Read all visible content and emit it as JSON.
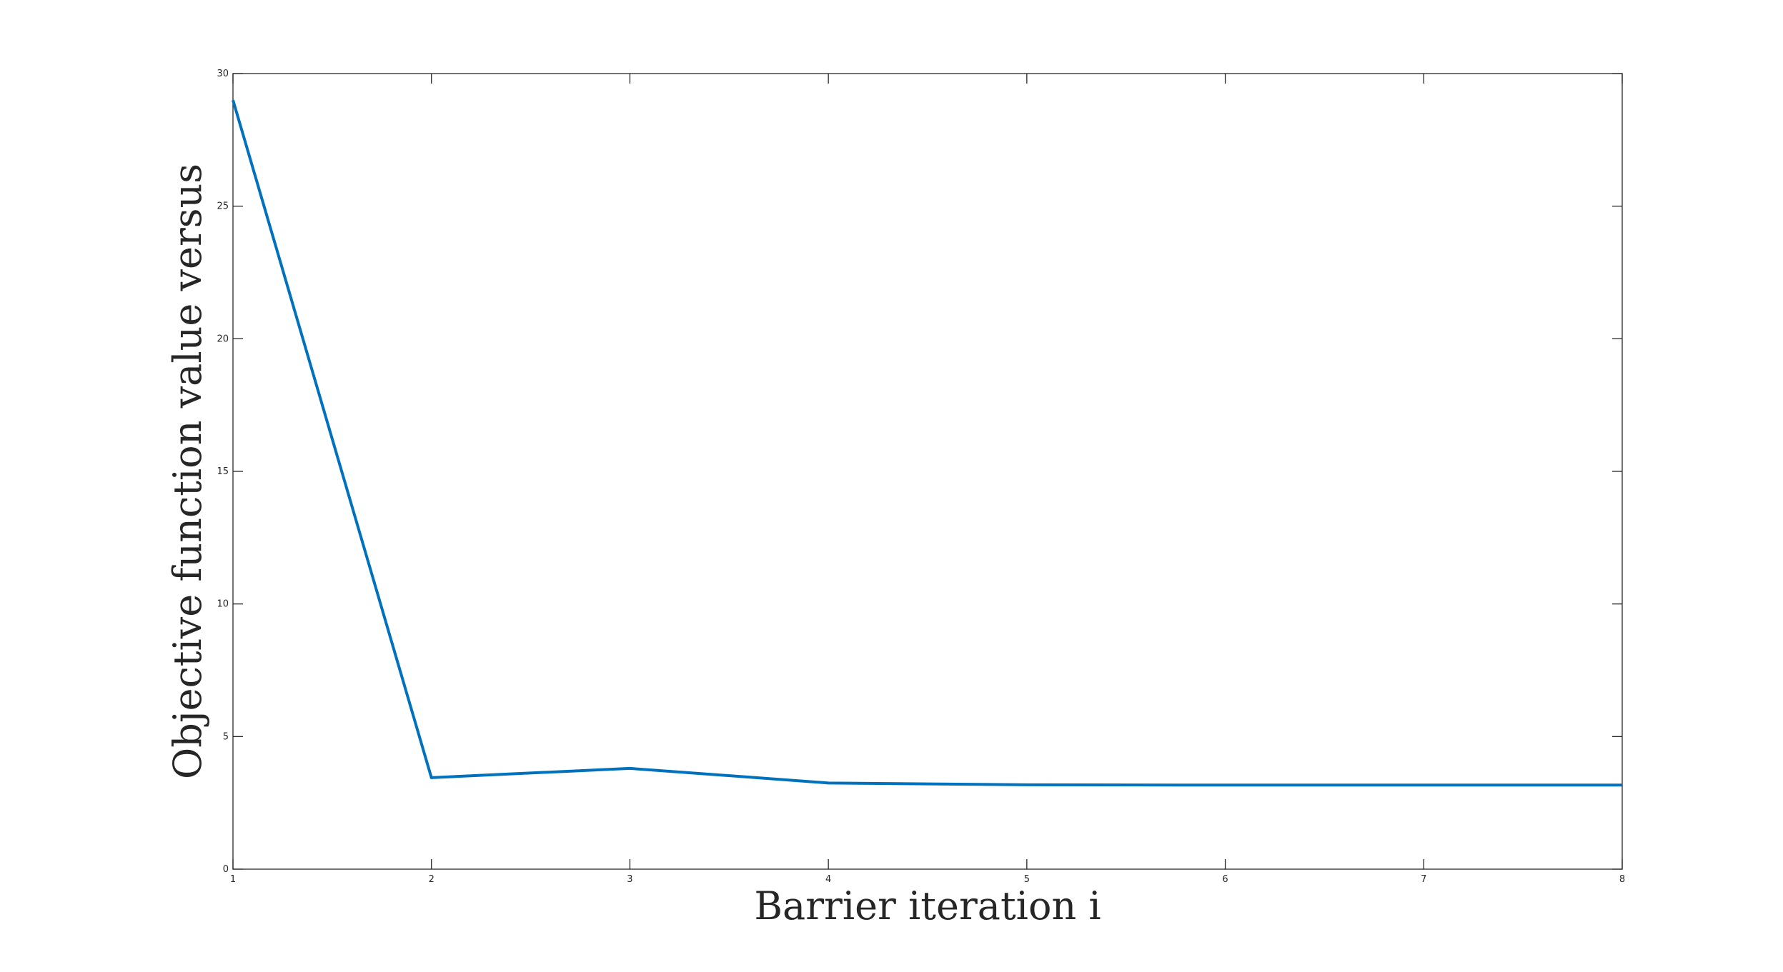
{
  "chart_data": {
    "type": "line",
    "title": "",
    "xlabel": "Barrier iteration i",
    "ylabel": "Objective function value versus",
    "xlim": [
      1,
      8
    ],
    "ylim": [
      0,
      30
    ],
    "x_ticks": [
      "1",
      "2",
      "3",
      "4",
      "5",
      "6",
      "7",
      "8"
    ],
    "y_ticks": [
      "0",
      "5",
      "10",
      "15",
      "20",
      "25",
      "30"
    ],
    "grid": false,
    "box": true,
    "series": [
      {
        "color": "#0072BD",
        "x": [
          1,
          2,
          3,
          4,
          5,
          6,
          7,
          8
        ],
        "y": [
          29.0,
          3.45,
          3.8,
          3.25,
          3.18,
          3.17,
          3.17,
          3.17
        ]
      }
    ]
  }
}
